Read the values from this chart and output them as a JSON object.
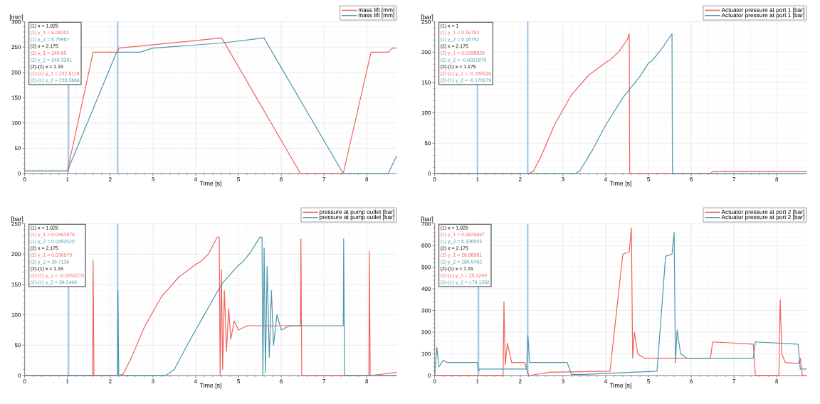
{
  "chart_data": [
    {
      "type": "line",
      "xlabel": "Time [s]",
      "ylabel": "[mm]",
      "xlim": [
        0,
        8.7
      ],
      "xticks": [
        0,
        1,
        2,
        3,
        4,
        5,
        6,
        7,
        8
      ],
      "ylim": [
        0,
        300
      ],
      "yticks": [
        0,
        50,
        100,
        150,
        200,
        250,
        300
      ],
      "grid": true,
      "legend": "top right",
      "ref_lines": [
        {
          "axis": "x",
          "value": 1.025,
          "color": "#9fc8e8"
        },
        {
          "axis": "x",
          "value": 2.175,
          "color": "#9fc8e8"
        }
      ],
      "annotations": [
        "(1) x = 1.025",
        "(1) y_1 = 6.08202",
        "(1) y_2 = 6.75967",
        "(2) x = 2.175",
        "(2) y_1 = 248.85",
        "(2) y_2 = 240.3261",
        "(2)-(1) x = 1.15",
        "(2)-(1) y_1 = 242.8118",
        "(2)-(1) y_2 = 233.5664"
      ],
      "series": [
        {
          "name": "mass lift [mm]",
          "color": "#f0625c",
          "x": [
            0,
            1,
            1.6,
            2.175,
            2.2,
            4.6,
            4.65,
            6.45,
            7.45,
            8.1,
            8.5,
            8.6,
            8.7
          ],
          "values": [
            5,
            5,
            240,
            240,
            248,
            268,
            262,
            0,
            0,
            240,
            240,
            248,
            248
          ]
        },
        {
          "name": "mass lift [mm]",
          "color": "#4c97ae",
          "x": [
            0,
            1,
            2.15,
            2.7,
            3,
            4.6,
            5.6,
            5.65,
            7.45,
            8.5,
            8.7
          ],
          "values": [
            5,
            5,
            240,
            240,
            248,
            258,
            268,
            260,
            0,
            0,
            35
          ]
        }
      ]
    },
    {
      "type": "line",
      "xlabel": "Time [s]",
      "ylabel": "[bar]",
      "xlim": [
        0,
        8.7
      ],
      "xticks": [
        0,
        1,
        2,
        3,
        4,
        5,
        6,
        7,
        8
      ],
      "ylim": [
        0,
        250
      ],
      "yticks": [
        0,
        50,
        100,
        150,
        200,
        250
      ],
      "grid": true,
      "legend": "top right",
      "ref_lines": [
        {
          "axis": "x",
          "value": 1,
          "color": "#9fc8e8"
        },
        {
          "axis": "x",
          "value": 2.175,
          "color": "#9fc8e8"
        }
      ],
      "annotations": [
        "(1) x = 1",
        "(1) y_1 = 0.16792",
        "(1) y_2 = 0.16792",
        "(2) x = 2.175",
        "(2) y_1 = 0.0098826",
        "(2) y_2 = -0.0021879",
        "(2)-(1) x = 1.175",
        "(2)-(1) y_1 = -0.158038",
        "(2)-(1) y_2 = -0.170079"
      ],
      "series": [
        {
          "name": "Actuator pressure at port 1 [bar]",
          "color": "#f0625c",
          "x": [
            0,
            2.2,
            2.3,
            2.5,
            2.8,
            3.2,
            3.6,
            4.0,
            4.1,
            4.3,
            4.5,
            4.55,
            4.56,
            6.45,
            6.5,
            8.7
          ],
          "values": [
            0,
            0,
            3,
            30,
            80,
            130,
            162,
            183,
            187,
            200,
            220,
            230,
            0,
            0,
            3,
            3
          ]
        },
        {
          "name": "Actuator pressure at port 1 [bar]",
          "color": "#4c97ae",
          "x": [
            0,
            3.3,
            3.4,
            3.7,
            4.0,
            4.4,
            4.8,
            5.0,
            5.1,
            5.3,
            5.5,
            5.55,
            5.56,
            8.7
          ],
          "values": [
            0,
            0,
            5,
            40,
            80,
            125,
            160,
            182,
            187,
            205,
            225,
            230,
            0,
            0
          ]
        }
      ]
    },
    {
      "type": "line",
      "xlabel": "Time [s]",
      "ylabel": "[bar]",
      "xlim": [
        0,
        8.7
      ],
      "xticks": [
        0,
        1,
        2,
        3,
        4,
        5,
        6,
        7,
        8
      ],
      "ylim": [
        0,
        250
      ],
      "yticks": [
        0,
        50,
        100,
        150,
        200,
        250
      ],
      "grid": true,
      "legend": "top right",
      "ref_lines": [
        {
          "axis": "x",
          "value": 1.025,
          "color": "#9fc8e8"
        },
        {
          "axis": "x",
          "value": 2.175,
          "color": "#9fc8e8"
        }
      ],
      "annotations": [
        "(1) x = 1.025",
        "(1) y_1 = 0.0462979",
        "(1) y_2 = 0.0493028",
        "(2) x = 2.175",
        "(2) y_1 = 0.036979",
        "(2) y_2 = 39.7136",
        "(2)-(1) x = 1.15",
        "(2)-(1) y_1 = -0.0093219",
        "(2)-(1) y_2 = 39.2449"
      ],
      "series": [
        {
          "name": "pressure at pump outlet [bar]",
          "color": "#f0625c",
          "x": [
            0,
            1.59,
            1.6,
            1.62,
            2.15,
            2.3,
            2.5,
            2.8,
            3.2,
            3.6,
            4.0,
            4.1,
            4.3,
            4.5,
            4.55,
            4.57,
            4.6,
            4.63,
            4.67,
            4.72,
            4.77,
            4.82,
            4.9,
            5.0,
            5.2,
            6.45,
            6.46,
            6.48,
            8.05,
            8.06,
            8.08,
            8.7
          ],
          "values": [
            0,
            0,
            190,
            0,
            0,
            2,
            30,
            80,
            130,
            162,
            183,
            187,
            200,
            228,
            228,
            0,
            175,
            10,
            140,
            40,
            110,
            60,
            90,
            75,
            82,
            82,
            225,
            0,
            0,
            205,
            0,
            5
          ]
        },
        {
          "name": "pressure at pump outlet [bar]",
          "color": "#4c97ae",
          "x": [
            0,
            2.17,
            2.18,
            2.2,
            3.3,
            3.5,
            3.8,
            4.2,
            4.6,
            5.0,
            5.1,
            5.3,
            5.5,
            5.55,
            5.57,
            5.6,
            5.63,
            5.67,
            5.72,
            5.77,
            5.82,
            5.9,
            6.0,
            6.2,
            7.45,
            7.46,
            7.48,
            8.7
          ],
          "values": [
            0,
            0,
            140,
            0,
            0,
            10,
            50,
            100,
            150,
            182,
            187,
            205,
            228,
            228,
            0,
            210,
            5,
            180,
            30,
            140,
            50,
            100,
            75,
            82,
            82,
            225,
            0,
            0
          ]
        }
      ]
    },
    {
      "type": "line",
      "xlabel": "Time [s]",
      "ylabel": "[bar]",
      "xlim": [
        0,
        8.7
      ],
      "xticks": [
        0,
        1,
        2,
        3,
        4,
        5,
        6,
        7,
        8
      ],
      "ylim": [
        0,
        700
      ],
      "yticks": [
        0,
        100,
        200,
        300,
        400,
        500,
        600,
        700
      ],
      "grid": true,
      "legend": "top right",
      "ref_lines": [
        {
          "axis": "x",
          "value": 1.025,
          "color": "#9fc8e8"
        },
        {
          "axis": "x",
          "value": 2.175,
          "color": "#9fc8e8"
        }
      ],
      "annotations": [
        "(1) x = 1.025",
        "(1) y_1 = 0.0629697",
        "(1) y_2 = 6.336083",
        "(2) x = 2.175",
        "(2) y_1 = 28.88981",
        "(2) y_2 = 185.9462",
        "(2)-(1) x = 1.15",
        "(2)-(1) y_1 = 28.3269",
        "(2)-(1) y_2 = 179.1558"
      ],
      "series": [
        {
          "name": "Actuator pressure at port 2 [bar]",
          "color": "#f0625c",
          "x": [
            0,
            1.6,
            1.62,
            1.65,
            1.7,
            1.8,
            2.1,
            2.2,
            2.7,
            4.1,
            4.4,
            4.55,
            4.6,
            4.63,
            4.67,
            4.75,
            4.9,
            6.45,
            6.5,
            7.45,
            7.5,
            8.05,
            8.08,
            8.12,
            8.2,
            8.5,
            8.55,
            8.6,
            8.7
          ],
          "values": [
            0,
            0,
            340,
            50,
            150,
            60,
            60,
            0,
            15,
            20,
            560,
            570,
            680,
            80,
            200,
            100,
            80,
            80,
            155,
            145,
            0,
            0,
            350,
            100,
            60,
            55,
            80,
            0,
            0
          ]
        },
        {
          "name": "Actuator pressure at port 2 [bar]",
          "color": "#4c97ae",
          "x": [
            0,
            0.05,
            0.1,
            0.2,
            0.3,
            1.0,
            1.02,
            1.05,
            2.15,
            2.18,
            2.22,
            3.1,
            3.2,
            3.5,
            5.2,
            5.4,
            5.55,
            5.6,
            5.63,
            5.67,
            5.75,
            5.9,
            7.45,
            7.5,
            8.5,
            8.55,
            8.7
          ],
          "values": [
            0,
            130,
            40,
            70,
            60,
            60,
            20,
            30,
            30,
            185,
            60,
            60,
            5,
            5,
            20,
            550,
            560,
            660,
            60,
            210,
            100,
            80,
            80,
            155,
            145,
            30,
            30
          ]
        }
      ]
    }
  ]
}
